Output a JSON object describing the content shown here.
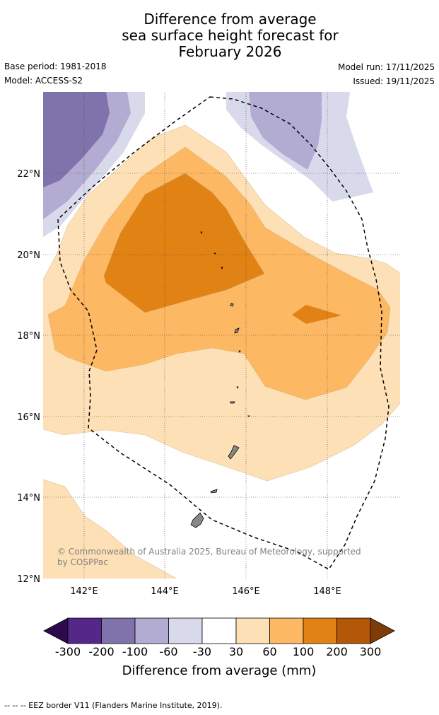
{
  "title": {
    "line1": "Difference from average",
    "line2": "sea surface height forecast for",
    "line3": "February 2026"
  },
  "meta": {
    "base_period": "Base period: 1981-2018",
    "model": "Model: ACCESS-S2",
    "model_run": "Model run: 17/11/2025",
    "issued": "Issued: 19/11/2025"
  },
  "map": {
    "lat_labels": [
      "22°N",
      "20°N",
      "18°N",
      "16°N",
      "14°N",
      "12°N"
    ],
    "lon_labels": [
      "142°E",
      "144°E",
      "146°E",
      "148°E"
    ],
    "copyright_line1": "© Commonwealth of Australia 2025, Bureau of Meteorology, supported",
    "copyright_line2": "by COSPPac"
  },
  "legend": {
    "ticks": [
      "-300",
      "-200",
      "-100",
      "-60",
      "-30",
      "30",
      "60",
      "100",
      "200",
      "300"
    ],
    "label": "Difference from average (mm)",
    "colors": {
      "below_300": "#2d0a4e",
      "m300_m200": "#542788",
      "m200_m100": "#8073ac",
      "m100_m60": "#b2abd2",
      "m60_m30": "#d8daeb",
      "m30_30": "#ffffff",
      "p30_60": "#fee0b6",
      "p60_100": "#fdb863",
      "p100_200": "#e08214",
      "p200_300": "#b35806",
      "above_300": "#7f3b08"
    }
  },
  "footer": "--  --  -- EEZ border V11 (Flanders Marine Institute, 2019)."
}
